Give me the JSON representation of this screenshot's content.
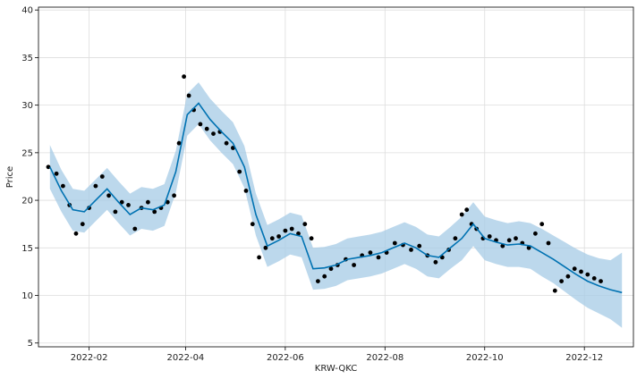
{
  "chart_data": {
    "type": "line",
    "title": "",
    "xlabel": "KRW-QKC",
    "ylabel": "Price",
    "ylim": [
      4.6,
      40.3
    ],
    "xlim": [
      "2022-01-01",
      "2022-12-31"
    ],
    "grid": true,
    "x_ticks": [
      {
        "date": "2022-02-01",
        "label": "2022-02"
      },
      {
        "date": "2022-04-01",
        "label": "2022-04"
      },
      {
        "date": "2022-06-01",
        "label": "2022-06"
      },
      {
        "date": "2022-08-01",
        "label": "2022-08"
      },
      {
        "date": "2022-10-01",
        "label": "2022-10"
      },
      {
        "date": "2022-12-01",
        "label": "2022-12"
      }
    ],
    "y_ticks": [
      5,
      10,
      15,
      20,
      25,
      30,
      35,
      40
    ],
    "colors": {
      "forecast": "#0072B2",
      "interval": "#a6cbe6",
      "observed": "#000000",
      "grid": "#dddddd"
    },
    "series": [
      {
        "role": "forecast",
        "x": [
          "2022-01-08",
          "2022-01-15",
          "2022-01-22",
          "2022-01-29",
          "2022-02-05",
          "2022-02-12",
          "2022-02-19",
          "2022-02-26",
          "2022-03-05",
          "2022-03-12",
          "2022-03-19",
          "2022-03-26",
          "2022-04-02",
          "2022-04-09",
          "2022-04-16",
          "2022-04-23",
          "2022-04-30",
          "2022-05-07",
          "2022-05-14",
          "2022-05-21",
          "2022-05-28",
          "2022-06-04",
          "2022-06-11",
          "2022-06-18",
          "2022-06-25",
          "2022-07-02",
          "2022-07-09",
          "2022-07-16",
          "2022-07-23",
          "2022-07-30",
          "2022-08-06",
          "2022-08-13",
          "2022-08-20",
          "2022-08-27",
          "2022-09-03",
          "2022-09-10",
          "2022-09-17",
          "2022-09-24",
          "2022-10-01",
          "2022-10-08",
          "2022-10-15",
          "2022-10-22",
          "2022-10-29",
          "2022-11-05",
          "2022-11-12",
          "2022-11-19",
          "2022-11-26",
          "2022-12-03",
          "2022-12-10",
          "2022-12-17",
          "2022-12-24"
        ],
        "y": [
          23.5,
          21.0,
          19.0,
          18.8,
          20.0,
          21.2,
          19.8,
          18.5,
          19.2,
          19.0,
          19.5,
          23.0,
          29.0,
          30.2,
          28.5,
          27.2,
          26.0,
          23.5,
          18.5,
          15.2,
          15.8,
          16.5,
          16.2,
          12.8,
          12.9,
          13.2,
          13.8,
          14.0,
          14.2,
          14.5,
          15.0,
          15.5,
          15.0,
          14.2,
          14.0,
          15.0,
          16.0,
          17.5,
          16.0,
          15.6,
          15.3,
          15.4,
          15.2,
          14.5,
          13.8,
          13.0,
          12.2,
          11.5,
          11.0,
          10.6,
          10.3
        ]
      },
      {
        "role": "interval",
        "x": [
          "2022-01-08",
          "2022-01-15",
          "2022-01-22",
          "2022-01-29",
          "2022-02-05",
          "2022-02-12",
          "2022-02-19",
          "2022-02-26",
          "2022-03-05",
          "2022-03-12",
          "2022-03-19",
          "2022-03-26",
          "2022-04-02",
          "2022-04-09",
          "2022-04-16",
          "2022-04-23",
          "2022-04-30",
          "2022-05-07",
          "2022-05-14",
          "2022-05-21",
          "2022-05-28",
          "2022-06-04",
          "2022-06-11",
          "2022-06-18",
          "2022-06-25",
          "2022-07-02",
          "2022-07-09",
          "2022-07-16",
          "2022-07-23",
          "2022-07-30",
          "2022-08-06",
          "2022-08-13",
          "2022-08-20",
          "2022-08-27",
          "2022-09-03",
          "2022-09-10",
          "2022-09-17",
          "2022-09-24",
          "2022-10-01",
          "2022-10-08",
          "2022-10-15",
          "2022-10-22",
          "2022-10-29",
          "2022-11-05",
          "2022-11-12",
          "2022-11-19",
          "2022-11-26",
          "2022-12-03",
          "2022-12-10",
          "2022-12-17",
          "2022-12-24"
        ],
        "upper": [
          25.8,
          23.2,
          21.2,
          21.0,
          22.2,
          23.4,
          22.0,
          20.7,
          21.4,
          21.2,
          21.7,
          25.2,
          31.2,
          32.4,
          30.7,
          29.4,
          28.2,
          25.7,
          20.7,
          17.4,
          18.0,
          18.7,
          18.4,
          15.0,
          15.1,
          15.4,
          16.0,
          16.2,
          16.4,
          16.7,
          17.2,
          17.7,
          17.2,
          16.4,
          16.2,
          17.2,
          18.3,
          19.8,
          18.3,
          17.9,
          17.6,
          17.8,
          17.6,
          17.0,
          16.3,
          15.6,
          14.9,
          14.3,
          13.9,
          13.7,
          14.5
        ],
        "lower": [
          21.2,
          18.8,
          16.8,
          16.6,
          17.8,
          19.0,
          17.6,
          16.3,
          17.0,
          16.8,
          17.3,
          20.8,
          26.8,
          28.0,
          26.3,
          25.0,
          23.8,
          21.3,
          16.3,
          13.0,
          13.6,
          14.3,
          14.0,
          10.6,
          10.7,
          11.0,
          11.6,
          11.8,
          12.0,
          12.3,
          12.8,
          13.3,
          12.8,
          12.0,
          11.8,
          12.8,
          13.7,
          15.2,
          13.7,
          13.3,
          13.0,
          13.0,
          12.8,
          12.0,
          11.3,
          10.4,
          9.5,
          8.7,
          8.1,
          7.5,
          6.6
        ]
      },
      {
        "role": "observed",
        "x": [
          "2022-01-07",
          "2022-01-12",
          "2022-01-16",
          "2022-01-20",
          "2022-01-24",
          "2022-01-28",
          "2022-02-01",
          "2022-02-05",
          "2022-02-09",
          "2022-02-13",
          "2022-02-17",
          "2022-02-21",
          "2022-02-25",
          "2022-03-01",
          "2022-03-05",
          "2022-03-09",
          "2022-03-13",
          "2022-03-17",
          "2022-03-21",
          "2022-03-25",
          "2022-03-28",
          "2022-03-31",
          "2022-04-03",
          "2022-04-06",
          "2022-04-10",
          "2022-04-14",
          "2022-04-18",
          "2022-04-22",
          "2022-04-26",
          "2022-04-30",
          "2022-05-04",
          "2022-05-08",
          "2022-05-12",
          "2022-05-16",
          "2022-05-20",
          "2022-05-24",
          "2022-05-28",
          "2022-06-01",
          "2022-06-05",
          "2022-06-09",
          "2022-06-13",
          "2022-06-17",
          "2022-06-21",
          "2022-06-25",
          "2022-06-29",
          "2022-07-03",
          "2022-07-08",
          "2022-07-13",
          "2022-07-18",
          "2022-07-23",
          "2022-07-28",
          "2022-08-02",
          "2022-08-07",
          "2022-08-12",
          "2022-08-17",
          "2022-08-22",
          "2022-08-27",
          "2022-09-01",
          "2022-09-05",
          "2022-09-09",
          "2022-09-13",
          "2022-09-17",
          "2022-09-20",
          "2022-09-23",
          "2022-09-26",
          "2022-09-30",
          "2022-10-04",
          "2022-10-08",
          "2022-10-12",
          "2022-10-16",
          "2022-10-20",
          "2022-10-24",
          "2022-10-28",
          "2022-11-01",
          "2022-11-05",
          "2022-11-09",
          "2022-11-13",
          "2022-11-17",
          "2022-11-21",
          "2022-11-25",
          "2022-11-29",
          "2022-12-03",
          "2022-12-07",
          "2022-12-11"
        ],
        "y": [
          23.5,
          22.8,
          21.5,
          19.5,
          16.5,
          17.5,
          19.2,
          21.5,
          22.5,
          20.5,
          18.8,
          19.8,
          19.5,
          17.0,
          19.2,
          19.8,
          18.8,
          19.2,
          19.8,
          20.5,
          26.0,
          33.0,
          31.0,
          29.5,
          28.0,
          27.5,
          27.0,
          27.2,
          26.0,
          25.5,
          23.0,
          21.0,
          17.5,
          14.0,
          15.0,
          16.0,
          16.2,
          16.8,
          17.0,
          16.5,
          17.5,
          16.0,
          11.5,
          12.0,
          12.8,
          13.2,
          13.8,
          13.2,
          14.2,
          14.5,
          14.0,
          14.5,
          15.5,
          15.3,
          14.8,
          15.2,
          14.2,
          13.5,
          14.0,
          14.8,
          16.0,
          18.5,
          19.0,
          17.5,
          17.0,
          16.0,
          16.2,
          15.8,
          15.2,
          15.8,
          16.0,
          15.5,
          15.0,
          16.5,
          17.5,
          15.5,
          10.5,
          11.5,
          12.0,
          12.8,
          12.5,
          12.2,
          11.8,
          11.5
        ]
      }
    ]
  }
}
